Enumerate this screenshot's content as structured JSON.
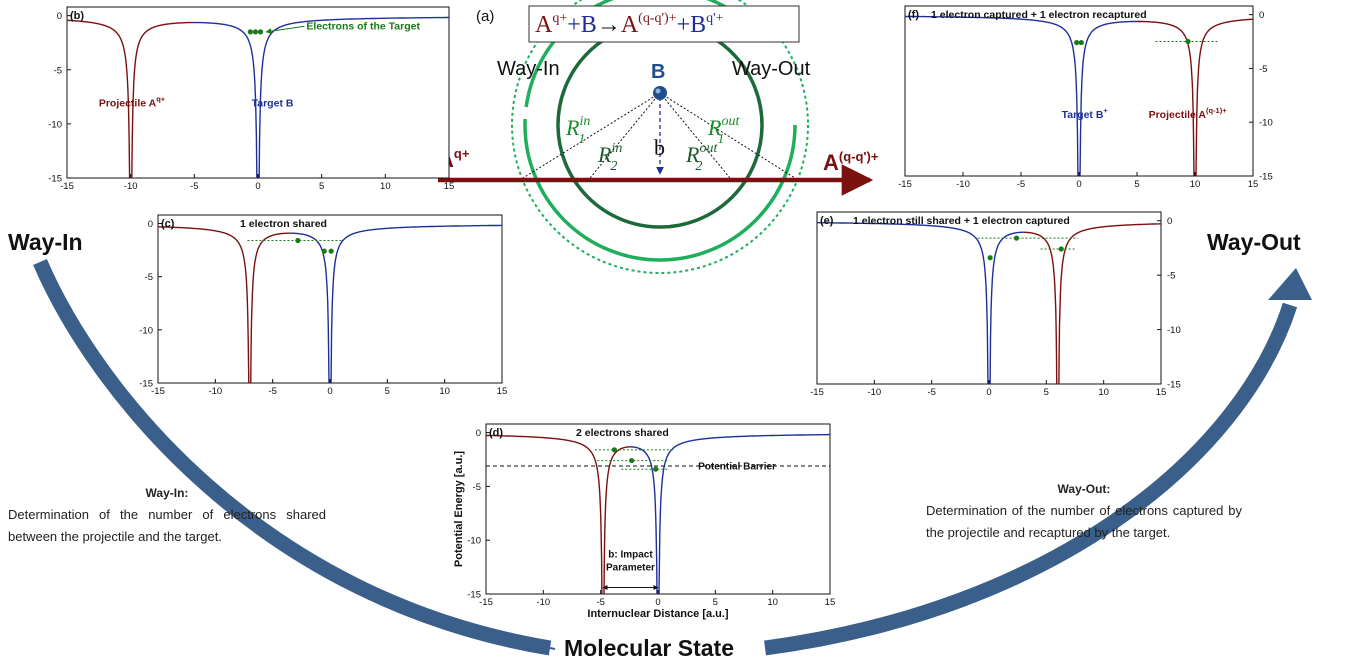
{
  "colors": {
    "projectile": "#7a1010",
    "target": "#1f2f9a",
    "electron": "#1a7a1a",
    "green_circle": "#1fae5c",
    "dark_circle": "#1c6a3a",
    "target_node": "#1f4e8c",
    "arrow_arc": "#3a5f8a"
  },
  "side_labels": {
    "way_in": "Way-In",
    "way_out": "Way-Out",
    "molecular_state": "Molecular State"
  },
  "descriptions": {
    "way_in_title": "Way-In:",
    "way_in_text": "Determination of the number of electrons shared between the projectile and the target.",
    "way_out_title": "Way-Out:",
    "way_out_text": "Determination of the number of electrons captured by the projectile and recaptured by the target."
  },
  "schematic": {
    "label": "(a)",
    "reaction_A": "A",
    "reaction_q": "q+",
    "reaction_plus1": "+",
    "reaction_B": "B",
    "reaction_arrow": "→",
    "reaction_A2": "A",
    "reaction_q2": "(q-q')+",
    "reaction_plus2": "+",
    "reaction_B2": "B",
    "reaction_q3": "q'+",
    "way_in": "Way-In",
    "way_out": "Way-Out",
    "target": "B",
    "projectile_in": "A",
    "projectile_in_sup": "q+",
    "projectile_out": "A",
    "projectile_out_sup": "(q-q')+",
    "impact": "b",
    "R": "R",
    "sub1": "1",
    "sub2": "2",
    "sup_in": "in",
    "sup_out": "out"
  },
  "chart_data": [
    {
      "id": "b",
      "type": "line",
      "panel_label": "(b)",
      "title": "",
      "xlim": [
        -15,
        15
      ],
      "ylim": [
        -15,
        0.8
      ],
      "xticks": [
        -15,
        -10,
        -5,
        0,
        5,
        10,
        15
      ],
      "yticks": [
        0,
        -5,
        -10,
        -15
      ],
      "yaxis_side": "left",
      "xlabel": "",
      "ylabel": "",
      "wells": [
        {
          "name": "Projectile",
          "center": -10,
          "side": "left",
          "color": "projectile"
        },
        {
          "name": "Target",
          "center": 0,
          "side": "right",
          "color": "target"
        }
      ],
      "electrons": [
        [
          -0.6,
          -1.5
        ],
        [
          -0.2,
          -1.5
        ],
        [
          0.2,
          -1.5
        ]
      ],
      "levels": [],
      "annotations": [
        {
          "text": "Projectile A",
          "sup": "q+",
          "x": -12.5,
          "y": -8.4,
          "color": "projectile"
        },
        {
          "text": "Target B",
          "sup": "",
          "x": -0.5,
          "y": -8.4,
          "color": "target"
        },
        {
          "text": "Electrons of the Target",
          "sup": "",
          "x": 3.8,
          "y": -1.3,
          "color": "electron",
          "arrow_to": [
            0.4,
            -1.5
          ]
        }
      ]
    },
    {
      "id": "c",
      "type": "line",
      "panel_label": "(c)",
      "title": "1 electron shared",
      "xlim": [
        -15,
        15
      ],
      "ylim": [
        -15,
        0.8
      ],
      "xticks": [
        -15,
        -10,
        -5,
        0,
        5,
        10,
        15
      ],
      "yticks": [
        0,
        -5,
        -10,
        -15
      ],
      "yaxis_side": "left",
      "xlabel": "",
      "ylabel": "",
      "wells": [
        {
          "name": "Projectile",
          "center": -7,
          "side": "left",
          "color": "projectile"
        },
        {
          "name": "Target",
          "center": 0,
          "side": "right",
          "color": "target"
        }
      ],
      "electrons": [
        [
          -2.8,
          -1.6
        ],
        [
          -0.5,
          -2.6
        ],
        [
          0.1,
          -2.6
        ]
      ],
      "levels": [
        [
          -7.2,
          -1.6,
          1.2,
          -1.6
        ]
      ],
      "annotations": []
    },
    {
      "id": "d",
      "type": "line",
      "panel_label": "(d)",
      "title": "2 electrons shared",
      "xlim": [
        -15,
        15
      ],
      "ylim": [
        -15,
        0.8
      ],
      "xticks": [
        -15,
        -10,
        -5,
        0,
        5,
        10,
        15
      ],
      "yticks": [
        0,
        -5,
        -10,
        -15
      ],
      "yaxis_side": "left",
      "xlabel": "Internuclear Distance [a.u.]",
      "ylabel": "Potential Energy [a.u.]",
      "wells": [
        {
          "name": "Projectile",
          "center": -4.8,
          "side": "left",
          "color": "projectile"
        },
        {
          "name": "Target",
          "center": 0,
          "side": "right",
          "color": "target"
        }
      ],
      "electrons": [
        [
          -3.8,
          -1.6
        ],
        [
          -2.3,
          -2.6
        ],
        [
          -0.2,
          -3.4
        ]
      ],
      "levels": [
        [
          -5.5,
          -1.6,
          1.3,
          -1.6
        ],
        [
          -5.3,
          -2.6,
          1.0,
          -2.6
        ],
        [
          -3.2,
          -3.4,
          0.8,
          -3.4
        ]
      ],
      "barrier": {
        "y": -3.1,
        "label": "Potential Barrier"
      },
      "impact": {
        "from": -4.8,
        "to": 0,
        "y": -14.4,
        "label1": "b: Impact",
        "label2": "Parameter"
      },
      "annotations": []
    },
    {
      "id": "e",
      "type": "line",
      "panel_label": "(e)",
      "title": "1 electron still shared + 1 electron captured",
      "xlim": [
        -15,
        15
      ],
      "ylim": [
        -15,
        0.8
      ],
      "xticks": [
        -15,
        -10,
        -5,
        0,
        5,
        10,
        15
      ],
      "yticks": [
        0,
        -5,
        -10,
        -15
      ],
      "yaxis_side": "right",
      "xlabel": "",
      "ylabel": "",
      "wells": [
        {
          "name": "Target",
          "center": 0,
          "side": "left",
          "color": "target"
        },
        {
          "name": "Projectile",
          "center": 6,
          "side": "right",
          "color": "projectile"
        }
      ],
      "electrons": [
        [
          0.1,
          -3.4
        ],
        [
          2.4,
          -1.6
        ],
        [
          6.3,
          -2.6
        ]
      ],
      "levels": [
        [
          -1.0,
          -1.6,
          7.8,
          -1.6
        ],
        [
          4.5,
          -2.6,
          7.6,
          -2.6
        ]
      ],
      "annotations": []
    },
    {
      "id": "f",
      "type": "line",
      "panel_label": "(f)",
      "title": "1 electron captured + 1 electron recaptured",
      "xlim": [
        -15,
        15
      ],
      "ylim": [
        -15,
        0.8
      ],
      "xticks": [
        -15,
        -10,
        -5,
        0,
        5,
        10,
        15
      ],
      "yticks": [
        0,
        -5,
        -10,
        -15
      ],
      "yaxis_side": "right",
      "xlabel": "",
      "ylabel": "",
      "wells": [
        {
          "name": "Target",
          "center": 0,
          "side": "left",
          "color": "target"
        },
        {
          "name": "Projectile",
          "center": 10,
          "side": "right",
          "color": "projectile"
        }
      ],
      "electrons": [
        [
          -0.2,
          -2.6
        ],
        [
          0.2,
          -2.6
        ],
        [
          9.4,
          -2.5
        ]
      ],
      "levels": [
        [
          6.6,
          -2.5,
          12.0,
          -2.5
        ]
      ],
      "annotations": [
        {
          "text": "Target B",
          "sup": "+",
          "x": -1.5,
          "y": -9.6,
          "color": "target"
        },
        {
          "text": "Projectile A",
          "sup": "(q-1)+",
          "x": 6.0,
          "y": -9.6,
          "color": "projectile"
        }
      ]
    }
  ]
}
